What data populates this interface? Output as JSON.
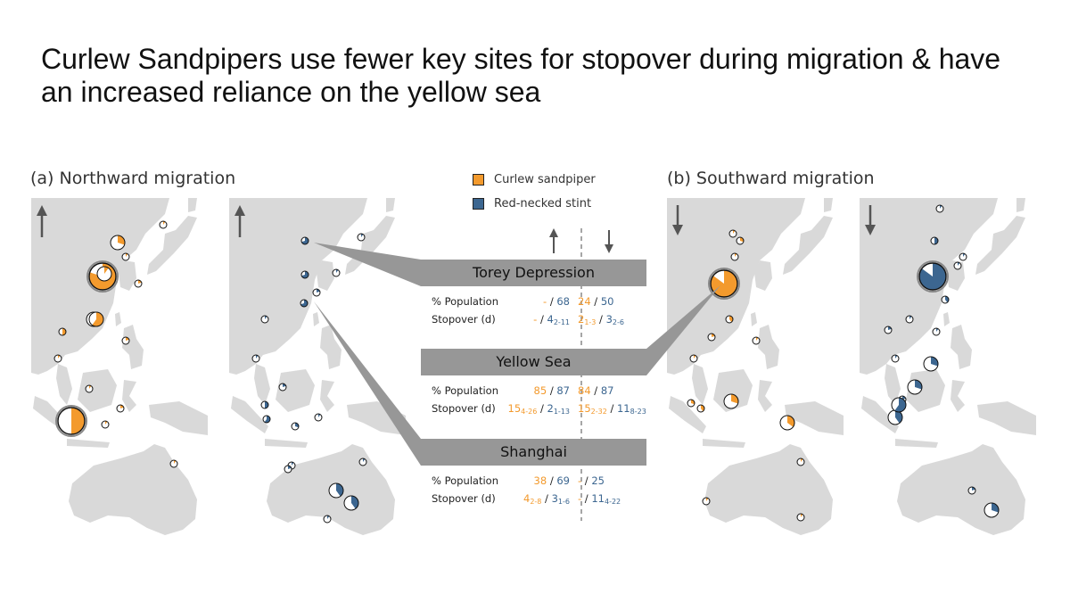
{
  "title": "Curlew Sandpipers use fewer key sites for stopover during migration & have an increased reliance on the yellow sea",
  "panels": {
    "north": "(a) Northward migration",
    "south": "(b) Southward migration"
  },
  "legend": {
    "curlew": "Curlew sandpiper",
    "stint": "Red-necked stint",
    "curlew_color": "#f39a2d",
    "stint_color": "#3c6690"
  },
  "stat_labels": {
    "population": "% Population",
    "stopover": "Stopover (d)"
  },
  "sites": [
    {
      "name": "Torey Depression",
      "north_pop_curlew": "-",
      "north_pop_stint": "68",
      "north_stop_curlew": "-",
      "north_stop_curlew_range": "",
      "north_stop_stint": "4",
      "north_stop_stint_range": "2-11",
      "south_pop_curlew": "24",
      "south_pop_stint": "50",
      "south_stop_curlew": "2",
      "south_stop_curlew_range": "1-3",
      "south_stop_stint": "3",
      "south_stop_stint_range": "2-6"
    },
    {
      "name": "Yellow Sea",
      "north_pop_curlew": "85",
      "north_pop_stint": "87",
      "north_stop_curlew": "15",
      "north_stop_curlew_range": "4-26",
      "north_stop_stint": "2",
      "north_stop_stint_range": "1-13",
      "south_pop_curlew": "84",
      "south_pop_stint": "87",
      "south_stop_curlew": "15",
      "south_stop_curlew_range": "2-32",
      "south_stop_stint": "11",
      "south_stop_stint_range": "8-23"
    },
    {
      "name": "Shanghai",
      "north_pop_curlew": "38",
      "north_pop_stint": "69",
      "north_stop_curlew": "4",
      "north_stop_curlew_range": "2-8",
      "north_stop_stint": "3",
      "north_stop_stint_range": "1-6",
      "south_pop_curlew": "-",
      "south_pop_stint": "25",
      "south_stop_curlew": "-",
      "south_stop_curlew_range": "",
      "south_stop_stint": "11",
      "south_stop_stint_range": "4-22"
    }
  ],
  "maps": [
    {
      "id": "north-curlew",
      "direction": "up",
      "species": "curlew",
      "pies": [
        {
          "f": 0.8,
          "s": "l"
        },
        {
          "f": 0.3,
          "s": "m"
        },
        {
          "f": 0.1,
          "s": "m"
        },
        {
          "f": 0.4,
          "s": "m"
        },
        {
          "f": 0.6,
          "s": "m"
        },
        {
          "f": 0.5,
          "s": "s"
        },
        {
          "f": 0.1,
          "s": "s"
        },
        {
          "f": 0.2,
          "s": "s"
        },
        {
          "f": 0.1,
          "s": "s"
        },
        {
          "f": 0.5,
          "s": "l"
        },
        {
          "f": 0.1,
          "s": "s"
        },
        {
          "f": 0.2,
          "s": "s"
        },
        {
          "f": 0.1,
          "s": "s"
        },
        {
          "f": 0.1,
          "s": "s"
        },
        {
          "f": 0.2,
          "s": "s"
        },
        {
          "f": 0.1,
          "s": "s"
        }
      ]
    },
    {
      "id": "north-stint",
      "direction": "up",
      "species": "stint",
      "pies": [
        {
          "f": 0.7,
          "s": "s"
        },
        {
          "f": 0.7,
          "s": "s"
        },
        {
          "f": 0.7,
          "s": "s"
        },
        {
          "f": 0.1,
          "s": "s"
        },
        {
          "f": 0.1,
          "s": "s"
        },
        {
          "f": 0.2,
          "s": "s"
        },
        {
          "f": 0.5,
          "s": "s"
        },
        {
          "f": 0.6,
          "s": "s"
        },
        {
          "f": 0.3,
          "s": "s"
        },
        {
          "f": 0.2,
          "s": "s"
        },
        {
          "f": 0.4,
          "s": "m"
        },
        {
          "f": 0.4,
          "s": "m"
        },
        {
          "f": 0.1,
          "s": "s"
        },
        {
          "f": 0.1,
          "s": "s"
        },
        {
          "f": 0.1,
          "s": "s"
        },
        {
          "f": 0.1,
          "s": "s"
        },
        {
          "f": 0.2,
          "s": "s"
        },
        {
          "f": 0.1,
          "s": "s"
        },
        {
          "f": 0.1,
          "s": "s"
        }
      ]
    },
    {
      "id": "south-curlew",
      "direction": "down",
      "species": "curlew",
      "pies": [
        {
          "f": 0.85,
          "s": "l"
        },
        {
          "f": 0.3,
          "s": "s"
        },
        {
          "f": 0.1,
          "s": "s"
        },
        {
          "f": 0.4,
          "s": "s"
        },
        {
          "f": 0.2,
          "s": "s"
        },
        {
          "f": 0.1,
          "s": "s"
        },
        {
          "f": 0.3,
          "s": "s"
        },
        {
          "f": 0.4,
          "s": "s"
        },
        {
          "f": 0.3,
          "s": "m"
        },
        {
          "f": 0.35,
          "s": "m"
        },
        {
          "f": 0.1,
          "s": "s"
        },
        {
          "f": 0.1,
          "s": "s"
        },
        {
          "f": 0.1,
          "s": "s"
        },
        {
          "f": 0.1,
          "s": "s"
        },
        {
          "f": 0.1,
          "s": "s"
        }
      ]
    },
    {
      "id": "south-stint",
      "direction": "down",
      "species": "stint",
      "pies": [
        {
          "f": 0.85,
          "s": "l"
        },
        {
          "f": 0.5,
          "s": "s"
        },
        {
          "f": 0.4,
          "s": "s"
        },
        {
          "f": 0.2,
          "s": "s"
        },
        {
          "f": 0.1,
          "s": "s"
        },
        {
          "f": 0.1,
          "s": "s"
        },
        {
          "f": 0.2,
          "s": "s"
        },
        {
          "f": 0.3,
          "s": "m"
        },
        {
          "f": 0.1,
          "s": "s"
        },
        {
          "f": 0.4,
          "s": "m"
        },
        {
          "f": 0.6,
          "s": "m"
        },
        {
          "f": 0.3,
          "s": "m"
        },
        {
          "f": 0.2,
          "s": "s"
        },
        {
          "f": 0.1,
          "s": "s"
        },
        {
          "f": 0.1,
          "s": "s"
        },
        {
          "f": 0.3,
          "s": "m"
        },
        {
          "f": 0.1,
          "s": "s"
        }
      ]
    }
  ]
}
